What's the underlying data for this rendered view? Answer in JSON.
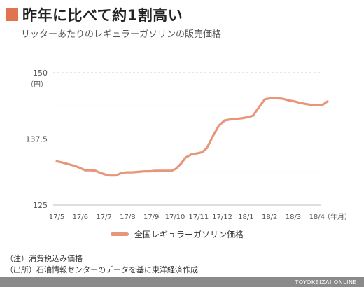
{
  "header": {
    "title": "昨年に比べて約1割高い",
    "subtitle": "リッターあたりのレギュラーガソリンの販売価格"
  },
  "notes": [
    "（注）消費税込み価格",
    "（出所）石油情報センターのデータを基に東洋経済作成"
  ],
  "footer": {
    "brand": "TOYOKEIZAI ONLINE"
  },
  "colors": {
    "accent": "#e2734f",
    "line": "#e8967a",
    "grid": "#cfcfcf",
    "axis_text": "#555555"
  },
  "chart_data": {
    "type": "line",
    "ylim": [
      125,
      150
    ],
    "y_ticks": [
      {
        "value": 150,
        "label": "150"
      },
      {
        "value": 137.5,
        "label": "137.5"
      },
      {
        "value": 125,
        "label": "125"
      }
    ],
    "y_unit": "（円）",
    "x_unit": "（年月）",
    "x_ticks": [
      "17/5",
      "17/6",
      "17/7",
      "17/8",
      "17/9",
      "17/10",
      "17/11",
      "17/12",
      "18/1",
      "18/2",
      "18/3",
      "18/4"
    ],
    "grid": true,
    "legend_position": "bottom",
    "series": [
      {
        "name": "全国レギュラーガソリン価格",
        "x": [
          0,
          0.2,
          0.45,
          0.7,
          0.95,
          1.2,
          1.45,
          1.65,
          1.85,
          2.05,
          2.25,
          2.5,
          2.7,
          2.95,
          3.2,
          3.45,
          3.7,
          3.95,
          4.15,
          4.4,
          4.6,
          4.85,
          5.05,
          5.25,
          5.45,
          5.7,
          5.95,
          6.15,
          6.35,
          6.6,
          6.85,
          7.1,
          7.35,
          7.55,
          7.8,
          8.05,
          8.3,
          8.55,
          8.8,
          9.05,
          9.3,
          9.55,
          9.8,
          10.05,
          10.3,
          10.55,
          10.8,
          11.05,
          11.25,
          11.45
        ],
        "values": [
          133.3,
          133.1,
          132.8,
          132.5,
          132.1,
          131.6,
          131.6,
          131.5,
          131.1,
          130.8,
          130.6,
          130.6,
          131.0,
          131.2,
          131.2,
          131.3,
          131.4,
          131.4,
          131.5,
          131.5,
          131.5,
          131.5,
          131.9,
          132.8,
          134.0,
          134.6,
          134.8,
          135.0,
          135.8,
          138.0,
          140.0,
          141.0,
          141.2,
          141.3,
          141.4,
          141.6,
          141.9,
          143.5,
          145.0,
          145.2,
          145.2,
          145.1,
          144.8,
          144.6,
          144.3,
          144.1,
          143.9,
          143.9,
          144.0,
          144.6
        ]
      }
    ]
  }
}
